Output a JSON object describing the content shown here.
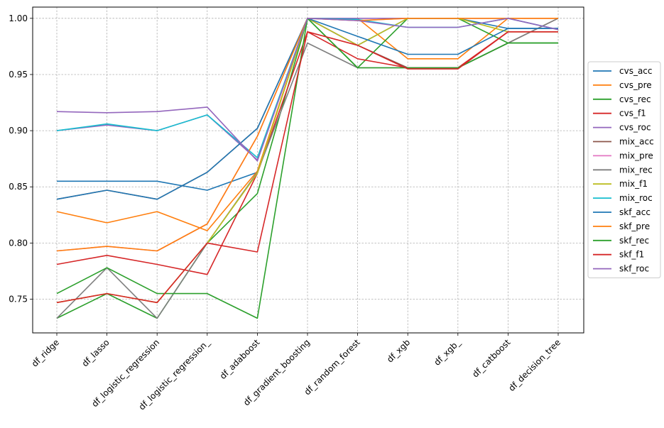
{
  "chart_data": {
    "type": "line",
    "title": "",
    "xlabel": "",
    "ylabel": "",
    "categories": [
      "df_ridge",
      "df_lasso",
      "df_logistic_regression",
      "df_logistic_regression_",
      "df_adaboost",
      "df_gradient_boosting",
      "df_random_forest",
      "df_xgb",
      "df_xgb_",
      "df_catboost",
      "df_decision_tree"
    ],
    "ylim": [
      0.72,
      1.01
    ],
    "yticks": [
      0.75,
      0.8,
      0.85,
      0.9,
      0.95,
      1.0
    ],
    "ytick_labels": [
      "0.75",
      "0.80",
      "0.85",
      "0.90",
      "0.95",
      "1.00"
    ],
    "grid": true,
    "legend_position": "right-outside",
    "series": [
      {
        "name": "cvs_acc",
        "color": "#1f77b4",
        "values": [
          0.855,
          0.855,
          0.855,
          0.847,
          0.863,
          1.0,
          0.976,
          1.0,
          1.0,
          0.991,
          0.991
        ]
      },
      {
        "name": "cvs_pre",
        "color": "#ff7f0e",
        "values": [
          0.828,
          0.818,
          0.828,
          0.811,
          0.864,
          1.0,
          1.0,
          0.964,
          0.964,
          1.0,
          1.0
        ]
      },
      {
        "name": "cvs_rec",
        "color": "#2ca02c",
        "values": [
          0.733,
          0.755,
          0.733,
          0.8,
          0.844,
          1.0,
          0.956,
          1.0,
          1.0,
          0.978,
          0.978
        ]
      },
      {
        "name": "cvs_f1",
        "color": "#d62728",
        "values": [
          0.781,
          0.789,
          0.781,
          0.772,
          0.862,
          0.988,
          0.964,
          0.956,
          0.956,
          0.988,
          0.988
        ]
      },
      {
        "name": "cvs_roc",
        "color": "#9467bd",
        "values": [
          0.9,
          0.905,
          0.9,
          0.914,
          0.874,
          1.0,
          1.0,
          1.0,
          1.0,
          1.0,
          0.99
        ]
      },
      {
        "name": "mix_acc",
        "color": "#8c564b",
        "values": [
          0.839,
          0.847,
          0.839,
          0.863,
          0.902,
          1.0,
          0.976,
          0.956,
          0.956,
          0.978,
          1.0
        ]
      },
      {
        "name": "mix_pre",
        "color": "#e377c2",
        "values": [
          0.793,
          0.797,
          0.793,
          0.817,
          0.895,
          1.0,
          0.998,
          1.0,
          1.0,
          1.0,
          1.0
        ]
      },
      {
        "name": "mix_rec",
        "color": "#7f7f7f",
        "values": [
          0.733,
          0.778,
          0.733,
          0.8,
          0.863,
          0.978,
          0.956,
          0.956,
          0.956,
          0.978,
          1.0
        ]
      },
      {
        "name": "mix_f1",
        "color": "#bcbd22",
        "values": [
          0.747,
          0.755,
          0.747,
          0.8,
          0.862,
          1.0,
          0.976,
          1.0,
          1.0,
          0.988,
          0.988
        ]
      },
      {
        "name": "mix_roc",
        "color": "#17becf",
        "values": [
          0.9,
          0.906,
          0.9,
          0.914,
          0.876,
          1.0,
          0.999,
          0.992,
          0.992,
          1.0,
          0.99
        ]
      },
      {
        "name": "skf_acc",
        "color": "#1f77b4",
        "values": [
          0.839,
          0.847,
          0.839,
          0.863,
          0.902,
          1.0,
          0.984,
          0.968,
          0.968,
          0.991,
          0.991
        ]
      },
      {
        "name": "skf_pre",
        "color": "#ff7f0e",
        "values": [
          0.793,
          0.797,
          0.793,
          0.817,
          0.895,
          1.0,
          0.998,
          1.0,
          1.0,
          1.0,
          1.0
        ]
      },
      {
        "name": "skf_rec",
        "color": "#2ca02c",
        "values": [
          0.755,
          0.778,
          0.755,
          0.755,
          0.733,
          1.0,
          0.956,
          0.956,
          0.956,
          0.978,
          0.978
        ]
      },
      {
        "name": "skf_f1",
        "color": "#d62728",
        "values": [
          0.747,
          0.755,
          0.747,
          0.8,
          0.792,
          0.988,
          0.976,
          0.955,
          0.955,
          0.988,
          0.988
        ]
      },
      {
        "name": "skf_roc",
        "color": "#9467bd",
        "values": [
          0.917,
          0.916,
          0.917,
          0.921,
          0.873,
          1.0,
          0.998,
          0.992,
          0.992,
          1.0,
          0.99
        ]
      }
    ]
  }
}
